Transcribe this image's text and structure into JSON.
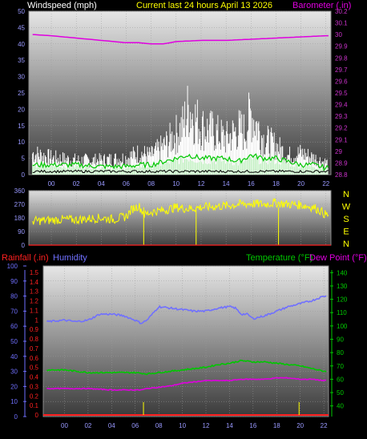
{
  "header": {
    "left_title": "Windspeed (mph)",
    "center_title": "Current last 24 hours April 13 2026",
    "right_title": "Barometer (.in)"
  },
  "colors": {
    "background": "#000000",
    "panel_top": "#e6e6e6",
    "panel_bottom": "#3a3a3a",
    "wind_gust": "#ffffff",
    "wind_avg": "#00c800",
    "wind_low": "#000000",
    "barometer": "#e000e0",
    "direction": "#ffff00",
    "rainfall": "#ff2020",
    "humidity": "#7070ff",
    "temperature": "#00c800",
    "dew_point": "#e000e0",
    "left_axis_text": "#9999ff",
    "right_axis_text": "#cc33cc",
    "temp_axis_text": "#00cc00"
  },
  "chart_data": [
    {
      "type": "line",
      "panel": "wind_barometer",
      "title": "Current last 24 hours April 13 2026",
      "xlabel": "",
      "ylabel": "Windspeed (mph)",
      "y2label": "Barometer (.in)",
      "x_tick_labels": [
        "00",
        "02",
        "04",
        "06",
        "08",
        "10",
        "12",
        "14",
        "16",
        "18",
        "20",
        "22"
      ],
      "ylim": [
        0,
        50
      ],
      "y_ticks": [
        0,
        5,
        10,
        15,
        20,
        25,
        30,
        35,
        40,
        45,
        50
      ],
      "y2lim": [
        28.8,
        30.2
      ],
      "y2_ticks": [
        "28.8",
        "28.9",
        "29",
        "29.1",
        "29.2",
        "29.3",
        "29.4",
        "29.5",
        "29.6",
        "29.7",
        "29.8",
        "29.9",
        "30",
        "30.1",
        "30.2"
      ],
      "grid": true,
      "series": [
        {
          "name": "Barometer",
          "axis": "right",
          "x": [
            -1.5,
            0,
            2,
            4,
            5,
            6,
            7,
            8,
            9,
            10,
            12,
            14,
            16,
            18,
            20,
            22
          ],
          "values": [
            30.0,
            29.99,
            29.97,
            29.95,
            29.94,
            29.93,
            29.93,
            29.92,
            29.92,
            29.94,
            29.95,
            29.95,
            29.96,
            29.97,
            29.98,
            29.99
          ]
        },
        {
          "name": "Wind gust",
          "axis": "left",
          "x": [
            -1.5,
            0,
            2,
            4,
            6,
            7,
            8,
            9,
            10,
            10.5,
            11,
            12,
            13,
            14,
            15,
            15.5,
            16,
            17,
            18,
            19,
            20,
            21,
            22
          ],
          "values": [
            9,
            7,
            6,
            6,
            7,
            9,
            8,
            12,
            17,
            20,
            28,
            20,
            18,
            15,
            19,
            18,
            26,
            15,
            12,
            8,
            9,
            7,
            5
          ]
        },
        {
          "name": "Wind average",
          "axis": "left",
          "x": [
            -1.5,
            0,
            2,
            4,
            6,
            7,
            8,
            9,
            10,
            11,
            12,
            13,
            14,
            15,
            16,
            17,
            18,
            19,
            20,
            21,
            22
          ],
          "values": [
            3,
            3,
            3,
            2.5,
            2.5,
            3,
            3,
            4,
            5,
            6,
            5,
            5,
            5,
            4,
            6,
            5,
            5,
            4,
            3,
            3,
            2
          ]
        },
        {
          "name": "Wind low",
          "axis": "left",
          "x": [
            -1.5,
            0,
            4,
            8,
            12,
            16,
            20,
            22
          ],
          "values": [
            1,
            1,
            1,
            1,
            1,
            1,
            1,
            1
          ]
        }
      ]
    },
    {
      "type": "scatter",
      "panel": "wind_direction",
      "x_tick_labels": [],
      "ylim": [
        0,
        360
      ],
      "y_ticks": [
        0,
        90,
        180,
        270,
        360
      ],
      "compass_labels": [
        "N",
        "W",
        "S",
        "E",
        "N"
      ],
      "grid": true,
      "series": [
        {
          "name": "Wind direction",
          "x": [
            -1.5,
            0,
            1,
            2,
            3,
            4,
            5,
            6,
            6.5,
            7,
            7.5,
            8,
            9,
            10,
            11,
            12,
            13,
            14,
            15,
            16,
            17,
            18,
            19,
            20,
            21,
            21.5,
            22
          ],
          "values": [
            160,
            165,
            170,
            168,
            175,
            180,
            170,
            190,
            240,
            260,
            200,
            220,
            230,
            250,
            240,
            250,
            255,
            260,
            270,
            275,
            270,
            280,
            270,
            265,
            250,
            230,
            200
          ]
        }
      ]
    },
    {
      "type": "line",
      "panel": "rain_humidity_temperature",
      "xlabel": "",
      "x_tick_labels": [
        "00",
        "02",
        "04",
        "06",
        "08",
        "10",
        "12",
        "14",
        "16",
        "18",
        "20",
        "22"
      ],
      "rain_label": "Rainfall (.in)",
      "rain_ticks": [
        "0",
        "0.1",
        "0.2",
        "0.3",
        "0.4",
        "0.5",
        "0.6",
        "0.7",
        "0.8",
        "0.9",
        "1",
        "1.1",
        "1.2",
        "1.3",
        "1.4",
        "1.5"
      ],
      "humidity_label": "Humidity",
      "humidity_ticks": [
        0,
        10,
        20,
        30,
        40,
        50,
        60,
        70,
        80,
        90,
        100
      ],
      "temperature_label": "Temperature (°F)",
      "dew_point_label": "Dew Point (°F)",
      "temp_ticks": [
        40,
        50,
        60,
        70,
        80,
        90,
        100,
        110,
        120,
        130,
        140
      ],
      "grid": true,
      "series": [
        {
          "name": "Humidity",
          "axis": "humidity",
          "x": [
            -1.5,
            0,
            1,
            2,
            3,
            4,
            5,
            6,
            6.5,
            7,
            8,
            9,
            10,
            11,
            12,
            13,
            14,
            14.5,
            15,
            15.5,
            16,
            17,
            18,
            19,
            20,
            21,
            22
          ],
          "values": [
            63,
            64,
            63,
            64,
            68,
            68,
            67,
            64,
            62,
            64,
            73,
            72,
            71,
            70,
            70,
            72,
            73,
            72,
            68,
            68,
            65,
            67,
            70,
            73,
            75,
            77,
            80
          ]
        },
        {
          "name": "Temperature",
          "axis": "temperature",
          "x": [
            -1.5,
            0,
            2,
            4,
            6,
            7,
            8,
            9,
            10,
            11,
            12,
            13,
            14,
            15,
            16,
            17,
            18,
            19,
            20,
            21,
            22
          ],
          "values": [
            67,
            67,
            65,
            65,
            65,
            64,
            65,
            66,
            67,
            68,
            69,
            71,
            72,
            74,
            73,
            73,
            72,
            71,
            70,
            68,
            66
          ]
        },
        {
          "name": "Dew Point",
          "axis": "temperature",
          "x": [
            -1.5,
            0,
            2,
            4,
            5,
            6,
            6.5,
            7,
            8,
            9,
            10,
            11,
            12,
            13,
            14,
            15,
            16,
            17,
            18,
            19,
            20,
            21,
            22
          ],
          "values": [
            53,
            53,
            53,
            52,
            52,
            52,
            52,
            53,
            54,
            55,
            57,
            58,
            59,
            59,
            59,
            60,
            60,
            60,
            61,
            61,
            60,
            60,
            59
          ]
        },
        {
          "name": "Rainfall",
          "axis": "rain",
          "x": [
            -1.5,
            22
          ],
          "values": [
            0,
            0
          ]
        }
      ]
    }
  ]
}
